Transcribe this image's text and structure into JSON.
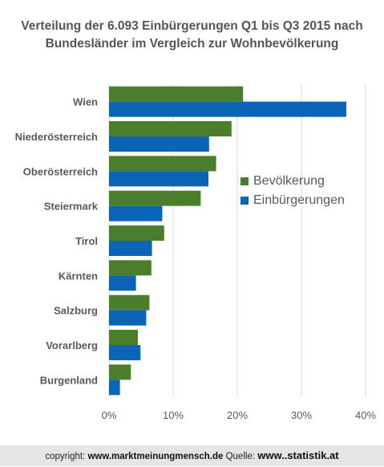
{
  "chart_data": {
    "type": "bar",
    "orientation": "horizontal",
    "title": "Verteilung der 6.093 Einbürgerungen Q1 bis Q3 2015 nach Bundesländer im Vergleich zur Wohnbevölkerung",
    "categories": [
      "Wien",
      "Niederösterreich",
      "Oberösterreich",
      "Steiermark",
      "Tirol",
      "Kärnten",
      "Salzburg",
      "Vorarlberg",
      "Burgenland"
    ],
    "series": [
      {
        "name": "Bevölkerung",
        "color": "#4a7e2c",
        "values": [
          20.9,
          19.1,
          16.7,
          14.3,
          8.6,
          6.6,
          6.3,
          4.5,
          3.4
        ]
      },
      {
        "name": "Einbürgerungen",
        "color": "#0b64b6",
        "values": [
          37.0,
          15.6,
          15.5,
          8.3,
          6.7,
          4.2,
          5.8,
          4.9,
          1.7
        ]
      }
    ],
    "xlim": [
      0,
      40
    ],
    "xticks": [
      0,
      10,
      20,
      30,
      40
    ],
    "xtick_labels": [
      "0%",
      "10%",
      "20%",
      "30%",
      "40%"
    ],
    "grid": true,
    "legend_position": "right"
  },
  "footer": {
    "copyright_label": "copyright:",
    "copyright_site": "www.marktmeinungmensch.de",
    "source_label": "Quelle:",
    "source_site": "www..statistik.at"
  }
}
